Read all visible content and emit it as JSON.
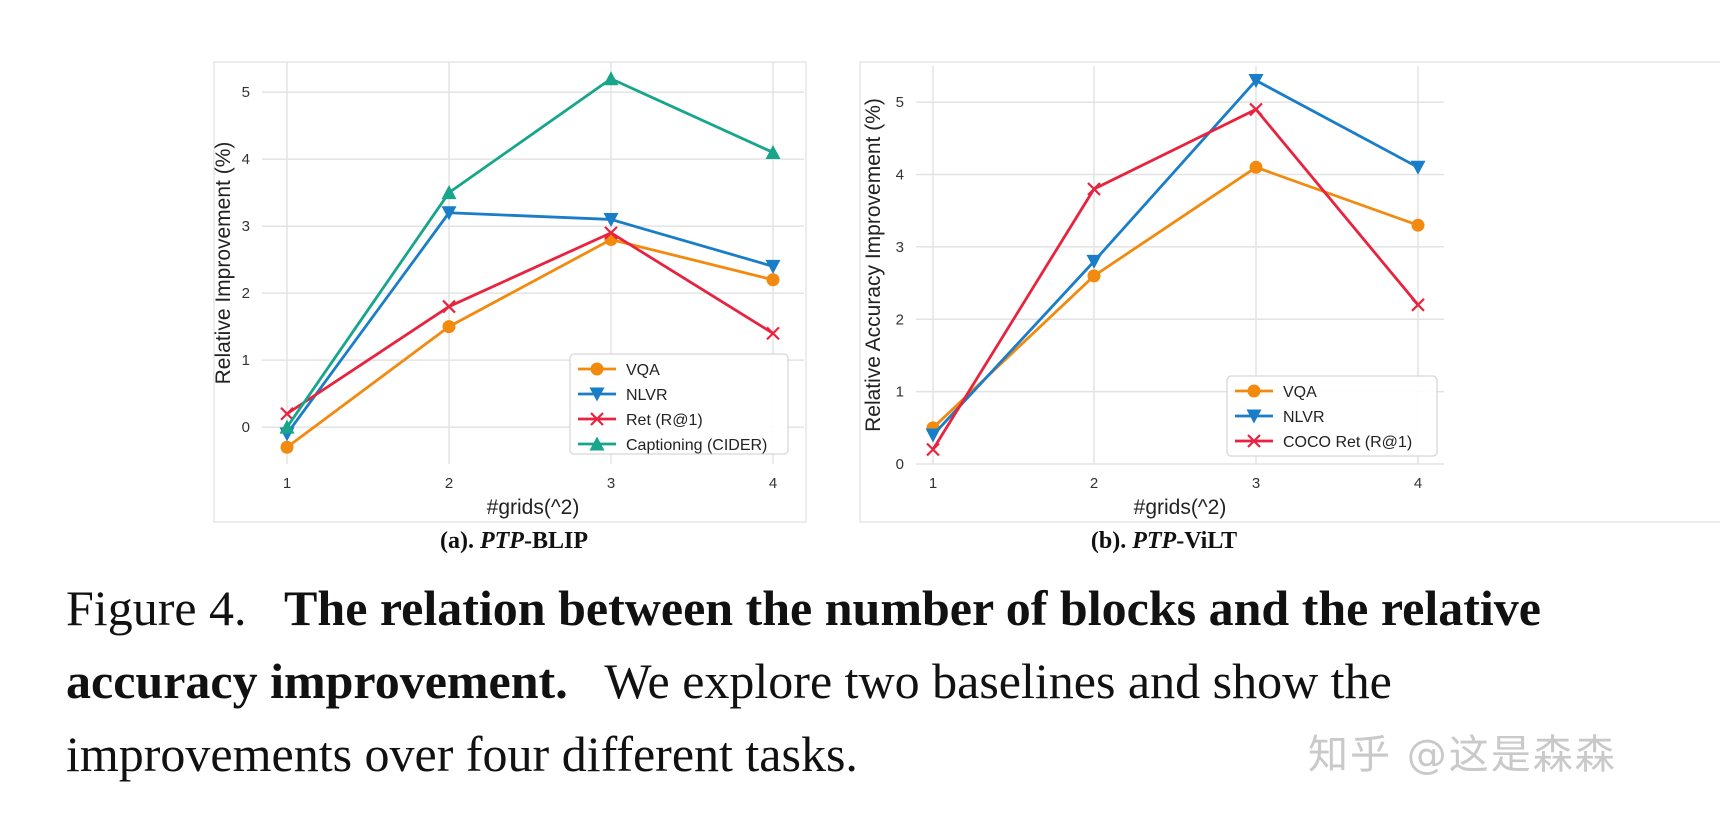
{
  "chart_data": [
    {
      "type": "line",
      "xlabel": "#grids(^2)",
      "ylabel": "Relative Improvement (%)",
      "x": [
        1,
        2,
        3,
        4
      ],
      "x_ticks": [
        "1",
        "2",
        "3",
        "4"
      ],
      "y_ticks": [
        "0",
        "1",
        "2",
        "3",
        "4",
        "5"
      ],
      "ylim": [
        -0.55,
        5.45
      ],
      "grid": true,
      "legend_position": "lower-right",
      "series": [
        {
          "name": "VQA",
          "values": [
            -0.3,
            1.5,
            2.8,
            2.2
          ],
          "color": "#f28a0f",
          "marker": "circle"
        },
        {
          "name": "NLVR",
          "values": [
            -0.1,
            3.2,
            3.1,
            2.4
          ],
          "color": "#1a7dc8",
          "marker": "triangle-down"
        },
        {
          "name": "Ret (R@1)",
          "values": [
            0.2,
            1.8,
            2.9,
            1.4
          ],
          "color": "#e8233f",
          "marker": "x"
        },
        {
          "name": "Captioning (CIDER)",
          "values": [
            0.0,
            3.5,
            5.2,
            4.1
          ],
          "color": "#17a58b",
          "marker": "triangle-up"
        }
      ],
      "caption_label": "(a). ",
      "caption_method": "PTP",
      "caption_model": "-BLIP"
    },
    {
      "type": "line",
      "xlabel": "#grids(^2)",
      "ylabel": "Relative Accuracy Improvement (%)",
      "x": [
        1,
        2,
        3,
        4
      ],
      "x_ticks": [
        "1",
        "2",
        "3",
        "4"
      ],
      "y_ticks": [
        "0",
        "1",
        "2",
        "3",
        "4",
        "5"
      ],
      "ylim": [
        0,
        5.5
      ],
      "grid": true,
      "legend_position": "lower-right",
      "series": [
        {
          "name": "VQA",
          "values": [
            0.5,
            2.6,
            4.1,
            3.3
          ],
          "color": "#f28a0f",
          "marker": "circle"
        },
        {
          "name": "NLVR",
          "values": [
            0.4,
            2.8,
            5.3,
            4.1
          ],
          "color": "#1a7dc8",
          "marker": "triangle-down"
        },
        {
          "name": "COCO Ret (R@1)",
          "values": [
            0.2,
            3.8,
            4.9,
            2.2
          ],
          "color": "#e8233f",
          "marker": "x"
        }
      ],
      "caption_label": "(b). ",
      "caption_method": "PTP",
      "caption_model": "-ViLT"
    }
  ],
  "caption": {
    "prefix": "Figure 4.",
    "bold": "The relation between the number of blocks and the relative accuracy improvement.",
    "rest": "We explore two baselines and show the improvements over four different tasks."
  },
  "watermark": "知乎 @这是森森"
}
